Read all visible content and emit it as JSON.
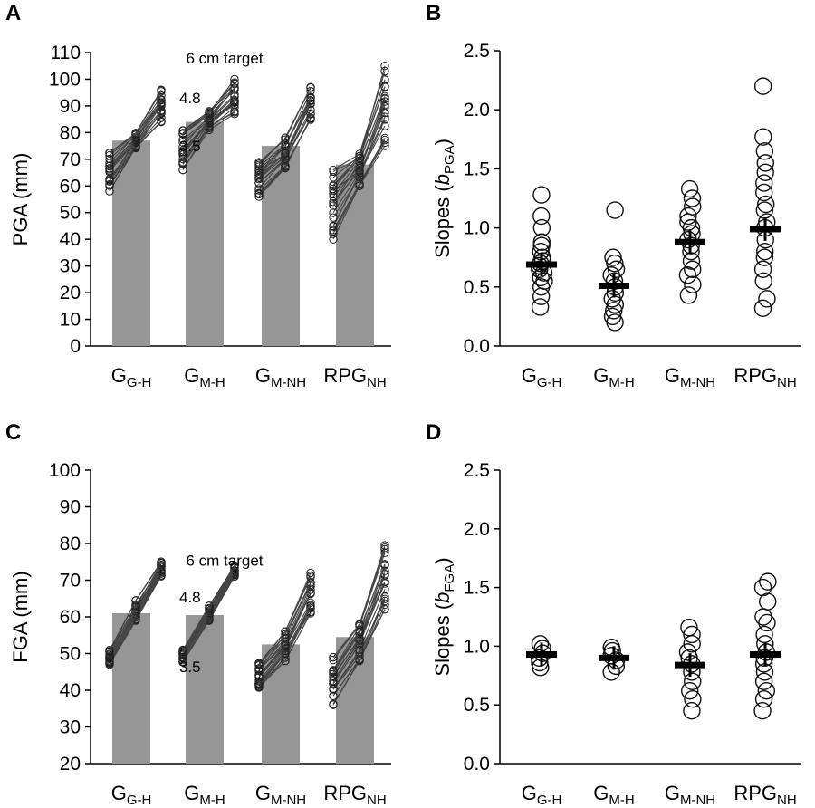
{
  "chart_data": [
    {
      "panel": "A",
      "type": "bar",
      "ylabel": "PGA (mm)",
      "ylim": [
        0,
        110
      ],
      "yticks": [
        0,
        10,
        20,
        30,
        40,
        50,
        60,
        70,
        80,
        90,
        100,
        110
      ],
      "yticks_fmt": "int",
      "categories": [
        {
          "main": "G",
          "sub": "G-H"
        },
        {
          "main": "G",
          "sub": "M-H"
        },
        {
          "main": "G",
          "sub": "M-NH"
        },
        {
          "main": "RPG",
          "sub": "NH"
        }
      ],
      "bar_values": [
        77,
        84,
        75,
        68
      ],
      "target_labels": [
        "3.5",
        "4.8",
        "6 cm target"
      ],
      "individual_range": {
        "target_3_5": [
          [
            58,
            73
          ],
          [
            66,
            81
          ],
          [
            56,
            70
          ],
          [
            40,
            66
          ]
        ],
        "target_4_8": [
          [
            74,
            80
          ],
          [
            81,
            88
          ],
          [
            66,
            78
          ],
          [
            60,
            72
          ]
        ],
        "target_6": [
          [
            84,
            96
          ],
          [
            87,
            100
          ],
          [
            84,
            97
          ],
          [
            75,
            105
          ]
        ]
      }
    },
    {
      "panel": "B",
      "type": "scatter",
      "ylabel_main": "Slopes (",
      "ylabel_var": "b",
      "ylabel_sub": "PGA",
      "ylabel_end": ")",
      "ylim": [
        0,
        2.5
      ],
      "yticks": [
        0.0,
        0.5,
        1.0,
        1.5,
        2.0,
        2.5
      ],
      "yticks_fmt": "1dp",
      "categories": [
        {
          "main": "G",
          "sub": "G-H"
        },
        {
          "main": "G",
          "sub": "M-H"
        },
        {
          "main": "G",
          "sub": "M-NH"
        },
        {
          "main": "RPG",
          "sub": "NH"
        }
      ],
      "means": [
        0.69,
        0.51,
        0.88,
        0.99
      ],
      "points": [
        [
          0.33,
          0.42,
          0.5,
          0.55,
          0.58,
          0.62,
          0.65,
          0.68,
          0.7,
          0.72,
          0.75,
          0.8,
          0.85,
          0.88,
          1.0,
          1.1,
          1.28
        ],
        [
          0.2,
          0.25,
          0.3,
          0.35,
          0.4,
          0.45,
          0.5,
          0.55,
          0.6,
          0.65,
          0.7,
          0.75,
          1.15
        ],
        [
          0.43,
          0.52,
          0.6,
          0.65,
          0.72,
          0.8,
          0.85,
          0.9,
          0.95,
          1.0,
          1.05,
          1.1,
          1.18,
          1.25,
          1.33
        ],
        [
          0.32,
          0.4,
          0.55,
          0.65,
          0.75,
          0.8,
          0.9,
          1.0,
          1.05,
          1.15,
          1.2,
          1.3,
          1.38,
          1.47,
          1.55,
          1.65,
          1.77,
          2.2
        ]
      ]
    },
    {
      "panel": "C",
      "type": "bar",
      "ylabel": "FGA (mm)",
      "ylim": [
        20,
        100
      ],
      "yticks": [
        20,
        30,
        40,
        50,
        60,
        70,
        80,
        90,
        100
      ],
      "yticks_fmt": "int",
      "categories": [
        {
          "main": "G",
          "sub": "G-H"
        },
        {
          "main": "G",
          "sub": "M-H"
        },
        {
          "main": "G",
          "sub": "M-NH"
        },
        {
          "main": "RPG",
          "sub": "NH"
        }
      ],
      "bar_values": [
        61,
        60.5,
        52.5,
        54.5
      ],
      "target_labels": [
        "3.5",
        "4.8",
        "6 cm target"
      ],
      "individual_range": {
        "target_3_5": [
          [
            47,
            51
          ],
          [
            47.5,
            51
          ],
          [
            40,
            48
          ],
          [
            36,
            49
          ]
        ],
        "target_4_8": [
          [
            59,
            64.5
          ],
          [
            59,
            63
          ],
          [
            48,
            56
          ],
          [
            48,
            58
          ]
        ],
        "target_6": [
          [
            71,
            75
          ],
          [
            71,
            74
          ],
          [
            61,
            72
          ],
          [
            61,
            79.5
          ]
        ]
      }
    },
    {
      "panel": "D",
      "type": "scatter",
      "ylabel_main": "Slopes (",
      "ylabel_var": "b",
      "ylabel_sub": "FGA",
      "ylabel_end": ")",
      "ylim": [
        0,
        2.5
      ],
      "yticks": [
        0.0,
        0.5,
        1.0,
        1.5,
        2.0,
        2.5
      ],
      "yticks_fmt": "1dp",
      "categories": [
        {
          "main": "G",
          "sub": "G-H"
        },
        {
          "main": "G",
          "sub": "M-H"
        },
        {
          "main": "G",
          "sub": "M-NH"
        },
        {
          "main": "RPG",
          "sub": "NH"
        }
      ],
      "means": [
        0.93,
        0.9,
        0.84,
        0.93
      ],
      "points": [
        [
          0.82,
          0.86,
          0.9,
          0.94,
          0.98,
          1.02
        ],
        [
          0.78,
          0.83,
          0.88,
          0.92,
          0.96,
          0.99
        ],
        [
          0.45,
          0.55,
          0.62,
          0.7,
          0.78,
          0.85,
          0.9,
          0.95,
          1.02,
          1.1,
          1.16
        ],
        [
          0.45,
          0.55,
          0.62,
          0.7,
          0.78,
          0.85,
          0.9,
          0.95,
          1.02,
          1.1,
          1.2,
          1.25,
          1.38,
          1.5,
          1.55
        ]
      ]
    }
  ]
}
